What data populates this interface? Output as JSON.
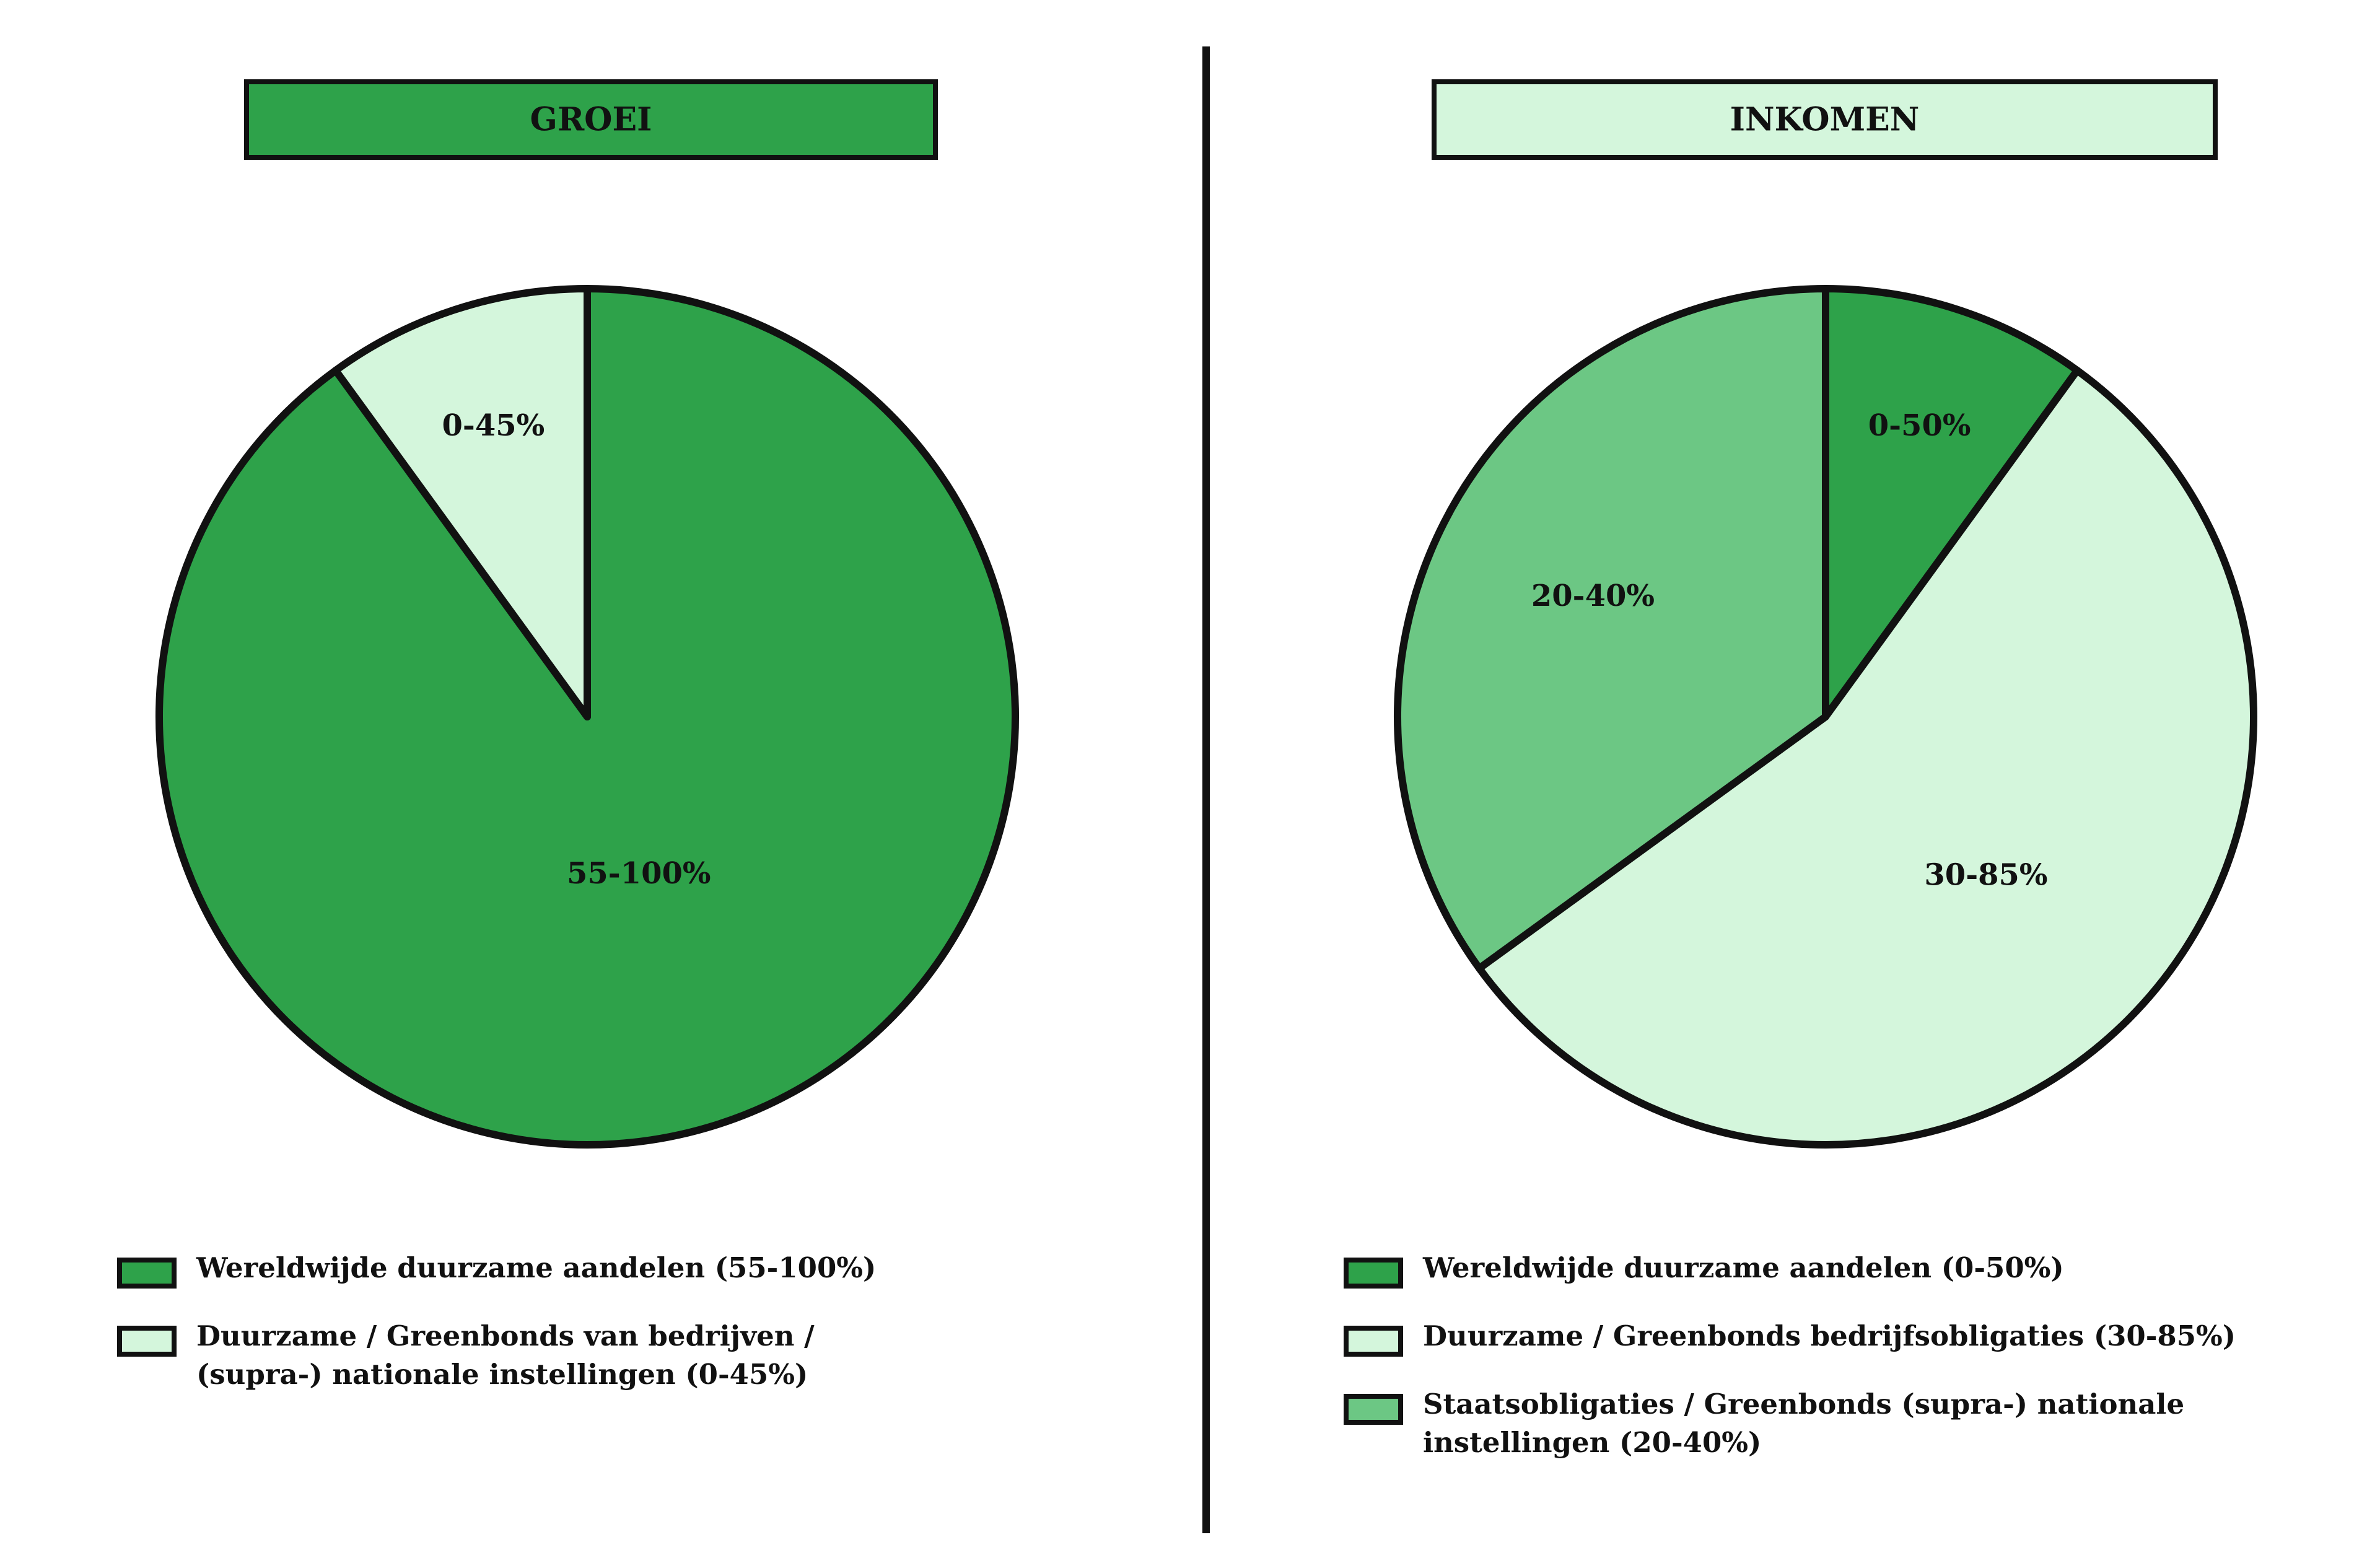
{
  "chart_data": [
    {
      "type": "pie",
      "title": "GROEI",
      "title_color": "#2ea24a",
      "categories": [
        "Wereldwijde duurzame aandelen (55-100%)",
        "Duurzame / Greenbonds van bedrijven /\n(supra-) nationale instellingen (0-45%)"
      ],
      "values": [
        90,
        10
      ],
      "labels": [
        "55-100%",
        "0-45%"
      ],
      "colors": [
        "#2ea24a",
        "#d4f6dc"
      ]
    },
    {
      "type": "pie",
      "title": "INKOMEN",
      "title_color": "#d4f6dc",
      "categories": [
        "Wereldwijde duurzame aandelen (0-50%)",
        "Duurzame / Greenbonds bedrijfsobligaties (30-85%)",
        "Staatsobligaties / Greenbonds (supra-) nationale\ninstellingen  (20-40%)"
      ],
      "values": [
        10,
        55,
        35
      ],
      "labels": [
        "0-50%",
        "30-85%",
        "20-40%"
      ],
      "colors": [
        "#2ea24a",
        "#d4f6dc",
        "#6cc784"
      ]
    }
  ]
}
